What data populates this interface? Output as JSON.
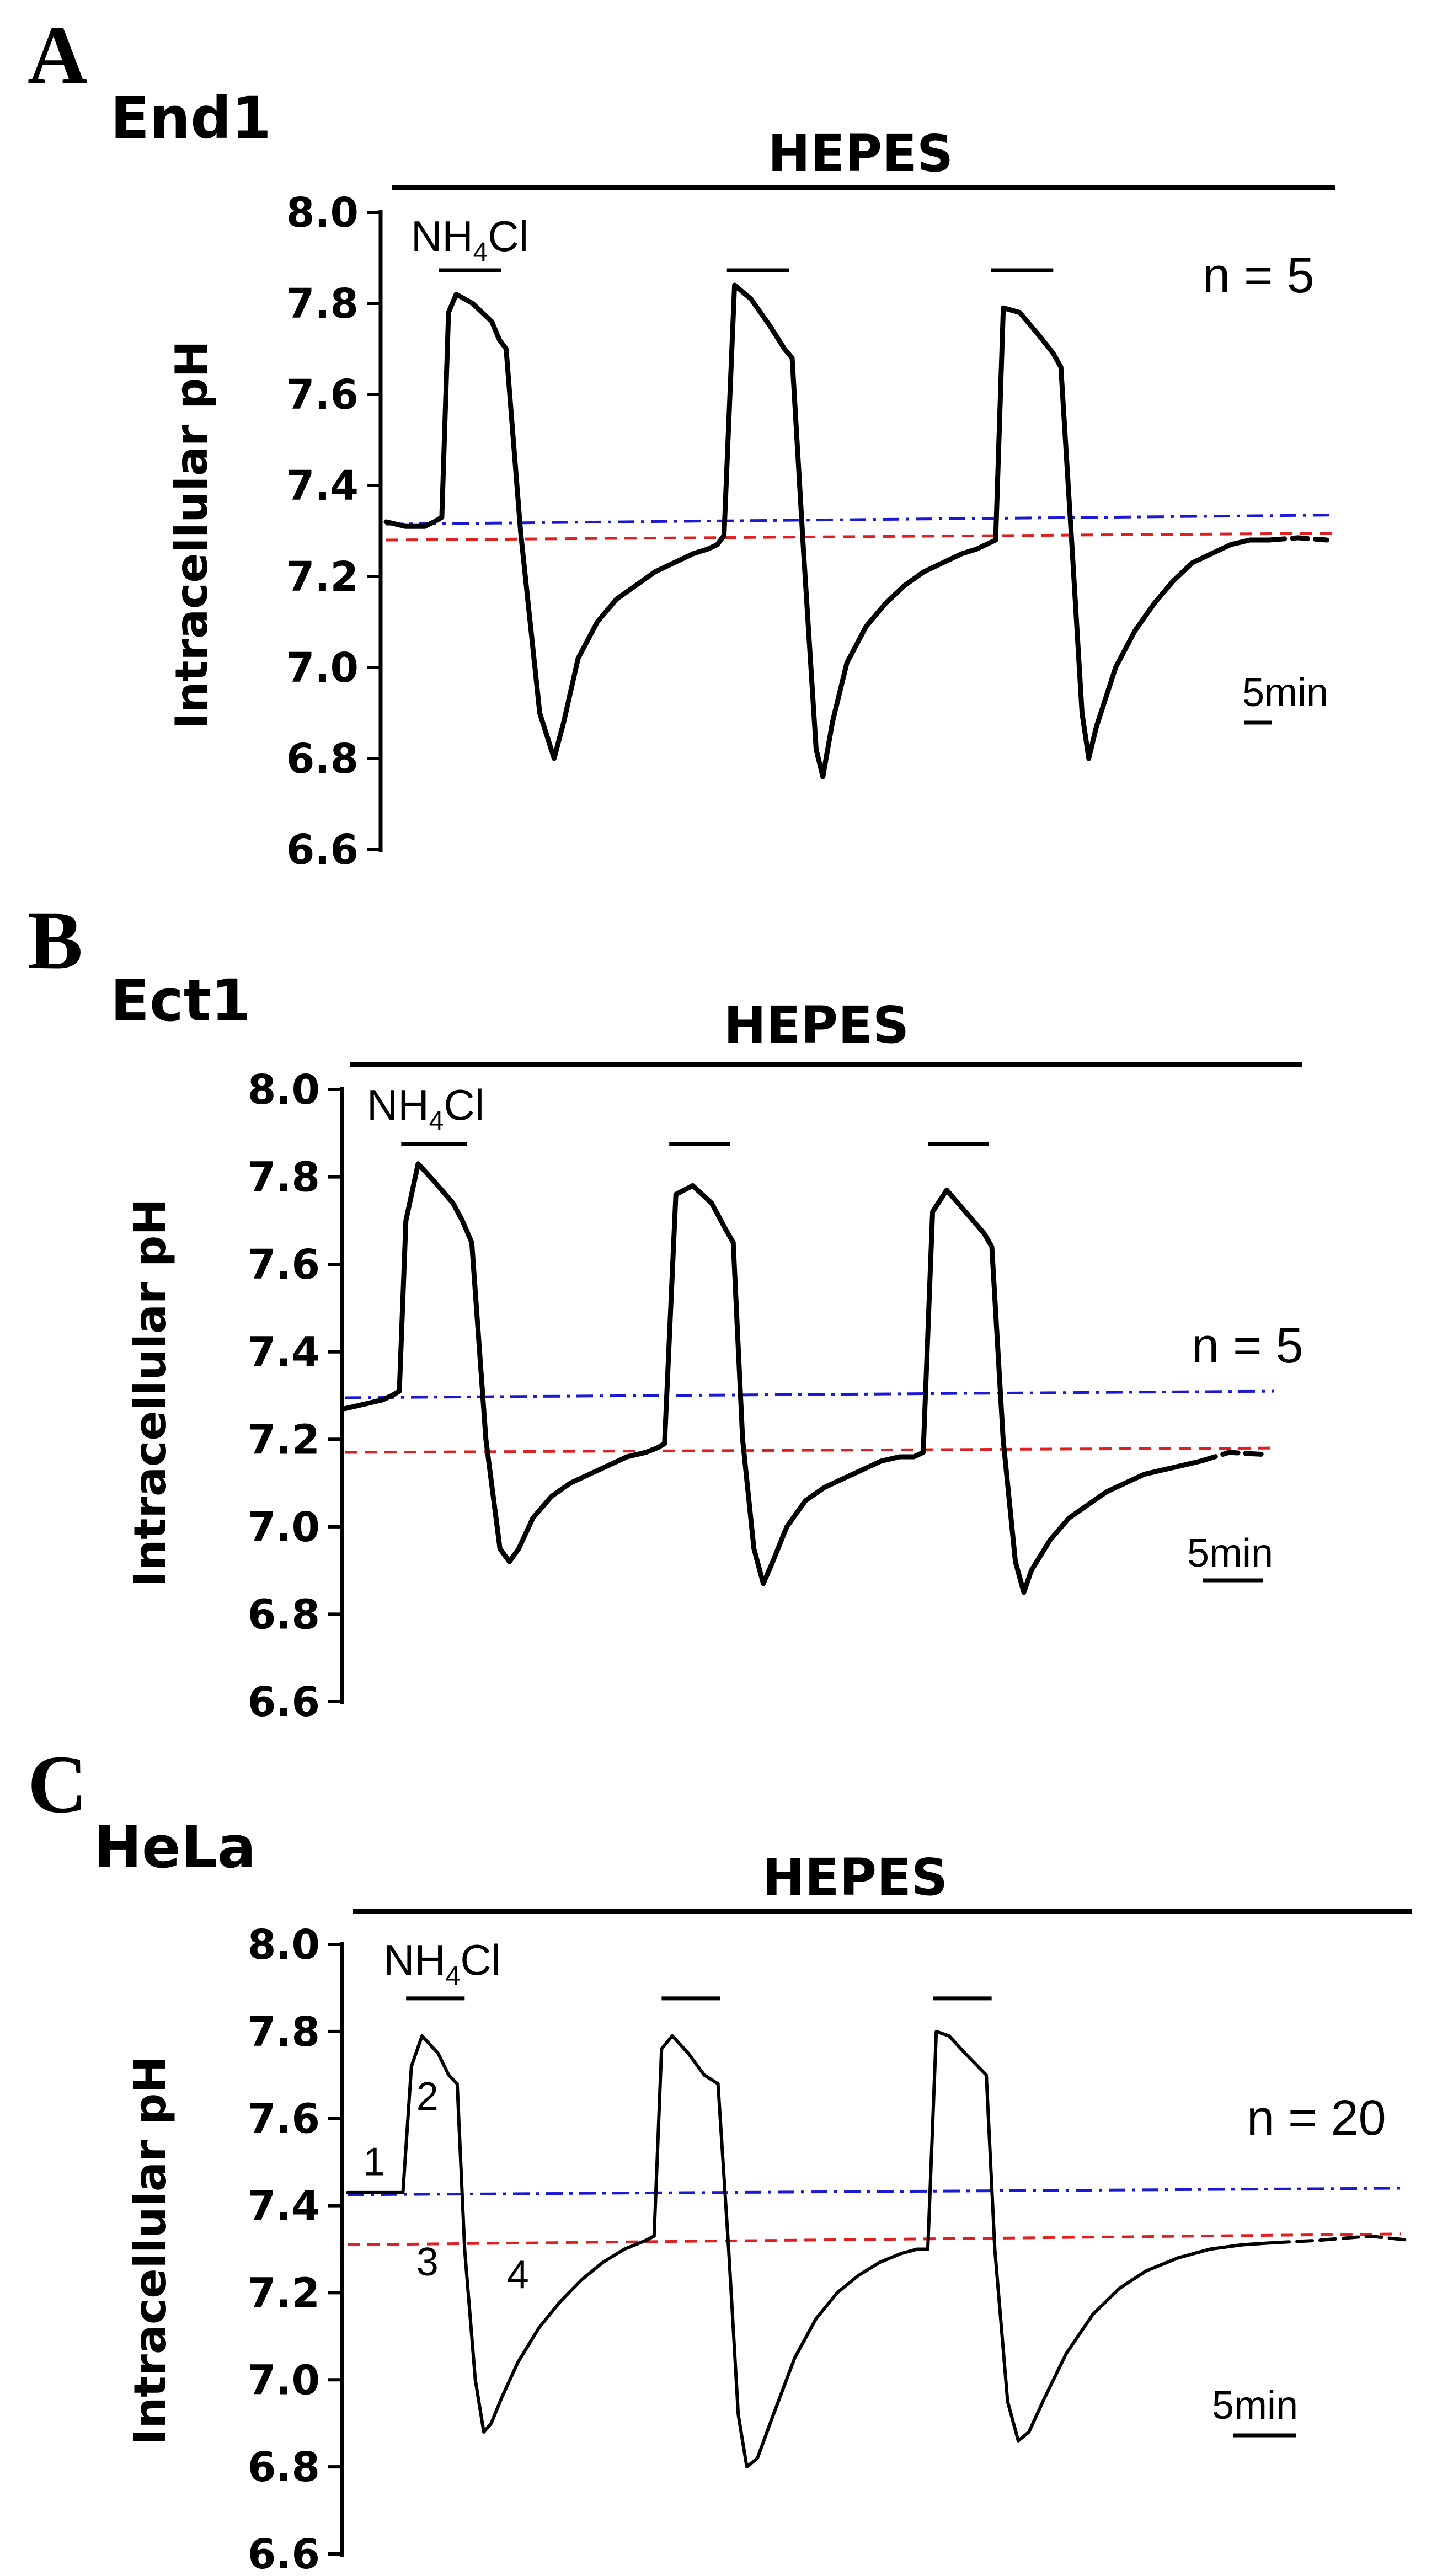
{
  "figure_letters": [
    "A",
    "B",
    "C"
  ],
  "colors": {
    "trace": "#000000",
    "baseline_blue": "#1a1ad6",
    "baseline_red": "#e02020"
  },
  "chart_data": [
    {
      "type": "line",
      "panel": "A",
      "title": "End1",
      "bath_label": "HEPES",
      "pulse_label": "NH4Cl",
      "pulse_label_main": "NH",
      "pulse_label_sub": "4",
      "pulse_label_tail": "Cl",
      "n_label": "n = 5",
      "scale_bar_label": "5min",
      "ylabel": "Intracellular pH",
      "xlabel": "",
      "ylim": [
        6.6,
        8.0
      ],
      "yticks": [
        "8.0",
        "7.8",
        "7.6",
        "7.4",
        "7.2",
        "7.0",
        "6.8",
        "6.6"
      ],
      "xlim": [
        0,
        100
      ],
      "baselines": [
        {
          "name": "initial resting pHi",
          "style": "dash-dot",
          "color": "blue",
          "y": [
            7.315,
            7.335
          ]
        },
        {
          "name": "recovered pHi",
          "style": "dashed",
          "color": "red",
          "y": [
            7.28,
            7.295
          ]
        }
      ],
      "pulses_x": [
        [
          5.5,
          12
        ],
        [
          35.5,
          42
        ],
        [
          63,
          69.5
        ]
      ],
      "series": [
        {
          "name": "pHi trace",
          "x": [
            0,
            2,
            4,
            5,
            5.8,
            6.5,
            7.3,
            9,
            11,
            11.8,
            12.5,
            14,
            16,
            17.5,
            18.5,
            20,
            22,
            24,
            26,
            28,
            30,
            32,
            33.5,
            34.5,
            35.2,
            36.3,
            38,
            40,
            41.5,
            42.3,
            43.5,
            44.8,
            45.5,
            46.5,
            48,
            50,
            52,
            54,
            56,
            58,
            60,
            61.5,
            62.5,
            63.5,
            64.3,
            66,
            68,
            69.5,
            70.3,
            71.5,
            72.5,
            73.2,
            74,
            76,
            78,
            80,
            82,
            84,
            86,
            88,
            90,
            92
          ],
          "y": [
            7.32,
            7.31,
            7.31,
            7.32,
            7.33,
            7.78,
            7.82,
            7.8,
            7.76,
            7.72,
            7.7,
            7.3,
            6.9,
            6.8,
            6.88,
            7.02,
            7.1,
            7.15,
            7.18,
            7.21,
            7.23,
            7.25,
            7.26,
            7.27,
            7.29,
            7.84,
            7.81,
            7.75,
            7.7,
            7.68,
            7.25,
            6.82,
            6.76,
            6.88,
            7.01,
            7.09,
            7.14,
            7.18,
            7.21,
            7.23,
            7.25,
            7.26,
            7.27,
            7.28,
            7.79,
            7.78,
            7.73,
            7.69,
            7.66,
            7.25,
            6.9,
            6.8,
            6.87,
            7.0,
            7.08,
            7.14,
            7.19,
            7.23,
            7.25,
            7.27,
            7.28,
            7.28
          ]
        },
        {
          "name": "extrapolated",
          "style": "dashed",
          "x": [
            92,
            95,
            98
          ],
          "y": [
            7.28,
            7.285,
            7.28
          ]
        }
      ]
    },
    {
      "type": "line",
      "panel": "B",
      "title": "Ect1",
      "bath_label": "HEPES",
      "pulse_label": "NH4Cl",
      "pulse_label_main": "NH",
      "pulse_label_sub": "4",
      "pulse_label_tail": "Cl",
      "n_label": "n = 5",
      "scale_bar_label": "5min",
      "ylabel": "Intracellular pH",
      "xlabel": "",
      "ylim": [
        6.6,
        8.0
      ],
      "yticks": [
        "8.0",
        "7.8",
        "7.6",
        "7.4",
        "7.2",
        "7.0",
        "6.8",
        "6.6"
      ],
      "xlim": [
        0,
        100
      ],
      "baselines": [
        {
          "name": "initial resting pHi",
          "style": "dash-dot",
          "color": "blue",
          "y": [
            7.295,
            7.31
          ]
        },
        {
          "name": "recovered pHi",
          "style": "dashed",
          "color": "red",
          "y": [
            7.17,
            7.18
          ]
        }
      ],
      "pulses_x": [
        [
          6,
          13
        ],
        [
          34.5,
          41
        ],
        [
          62,
          68.5
        ]
      ],
      "series": [
        {
          "name": "pHi trace",
          "x": [
            0,
            2,
            4,
            5,
            5.8,
            6.5,
            7.8,
            9.5,
            11.5,
            12.5,
            13.5,
            15,
            16.5,
            17.5,
            18.5,
            20,
            22,
            24,
            26,
            28,
            30,
            32,
            33.2,
            34,
            35.2,
            37,
            39,
            40.5,
            41.3,
            42.3,
            43.5,
            44.5,
            45.5,
            47,
            49,
            51,
            53,
            55,
            57,
            59,
            60.5,
            61.5,
            62.5,
            64,
            66,
            68,
            68.8,
            70,
            71.3,
            72.2,
            73,
            75,
            77,
            79,
            81,
            83,
            85,
            87,
            89,
            91
          ],
          "y": [
            7.27,
            7.28,
            7.29,
            7.3,
            7.31,
            7.7,
            7.83,
            7.79,
            7.74,
            7.7,
            7.65,
            7.2,
            6.95,
            6.92,
            6.95,
            7.02,
            7.07,
            7.1,
            7.12,
            7.14,
            7.16,
            7.17,
            7.18,
            7.19,
            7.76,
            7.78,
            7.74,
            7.68,
            7.65,
            7.2,
            6.95,
            6.87,
            6.92,
            7.0,
            7.06,
            7.09,
            7.11,
            7.13,
            7.15,
            7.16,
            7.16,
            7.17,
            7.72,
            7.77,
            7.72,
            7.67,
            7.64,
            7.2,
            6.92,
            6.85,
            6.9,
            6.97,
            7.02,
            7.05,
            7.08,
            7.1,
            7.12,
            7.13,
            7.14,
            7.15
          ]
        },
        {
          "name": "extrapolated",
          "style": "dashed",
          "x": [
            91,
            94,
            98
          ],
          "y": [
            7.15,
            7.17,
            7.165
          ]
        }
      ]
    },
    {
      "type": "line",
      "panel": "C",
      "title": "HeLa",
      "bath_label": "HEPES",
      "pulse_label": "NH4Cl",
      "pulse_label_main": "NH",
      "pulse_label_sub": "4",
      "pulse_label_tail": "Cl",
      "n_label": "n = 20",
      "scale_bar_label": "5min",
      "ylabel": "Intracellular pH",
      "xlabel": "",
      "ylim": [
        6.6,
        8.0
      ],
      "yticks": [
        "8.0",
        "7.8",
        "7.6",
        "7.4",
        "7.2",
        "7.0",
        "6.8",
        "6.6"
      ],
      "xlim": [
        0,
        100
      ],
      "baselines": [
        {
          "name": "initial resting pHi",
          "style": "dash-dot",
          "color": "blue",
          "y": [
            7.425,
            7.44
          ]
        },
        {
          "name": "recovered pHi",
          "style": "dashed",
          "color": "red",
          "y": [
            7.31,
            7.335
          ]
        }
      ],
      "pulses_x": [
        [
          5.5,
          11
        ],
        [
          29.5,
          35
        ],
        [
          55,
          60.5
        ]
      ],
      "phase_labels": [
        {
          "text": "1",
          "x": 2.5,
          "y": 7.47
        },
        {
          "text": "2",
          "x": 7.5,
          "y": 7.62
        },
        {
          "text": "3",
          "x": 7.5,
          "y": 7.24
        },
        {
          "text": "4",
          "x": 16,
          "y": 7.21
        }
      ],
      "series": [
        {
          "name": "pHi trace",
          "x": [
            0,
            1.5,
            3,
            4.5,
            5.2,
            6,
            7,
            8.5,
            9.5,
            10.3,
            11,
            12,
            12.8,
            13.5,
            14.5,
            16,
            18,
            20,
            22,
            24,
            26,
            28,
            28.8,
            29.5,
            30.5,
            32,
            33.5,
            34.8,
            35.8,
            36.7,
            37.5,
            38.5,
            40,
            42,
            44,
            46,
            48,
            50,
            52,
            53.5,
            54.5,
            55.3,
            56.5,
            58,
            60,
            60.8,
            62,
            63,
            64,
            65.5,
            67.5,
            70,
            72.5,
            75,
            78,
            81,
            84,
            87
          ],
          "y": [
            7.43,
            7.43,
            7.43,
            7.43,
            7.43,
            7.72,
            7.79,
            7.75,
            7.7,
            7.68,
            7.3,
            7.0,
            6.88,
            6.9,
            6.96,
            7.04,
            7.12,
            7.18,
            7.23,
            7.27,
            7.3,
            7.32,
            7.33,
            7.76,
            7.79,
            7.75,
            7.7,
            7.68,
            7.3,
            6.92,
            6.8,
            6.82,
            6.92,
            7.05,
            7.14,
            7.2,
            7.24,
            7.27,
            7.29,
            7.3,
            7.3,
            7.8,
            7.79,
            7.75,
            7.7,
            7.3,
            6.95,
            6.86,
            6.88,
            6.96,
            7.06,
            7.15,
            7.21,
            7.25,
            7.28,
            7.3,
            7.31,
            7.315
          ]
        },
        {
          "name": "extrapolated",
          "style": "dashed",
          "x": [
            87,
            91,
            96,
            100
          ],
          "y": [
            7.315,
            7.32,
            7.33,
            7.32
          ]
        }
      ]
    }
  ]
}
